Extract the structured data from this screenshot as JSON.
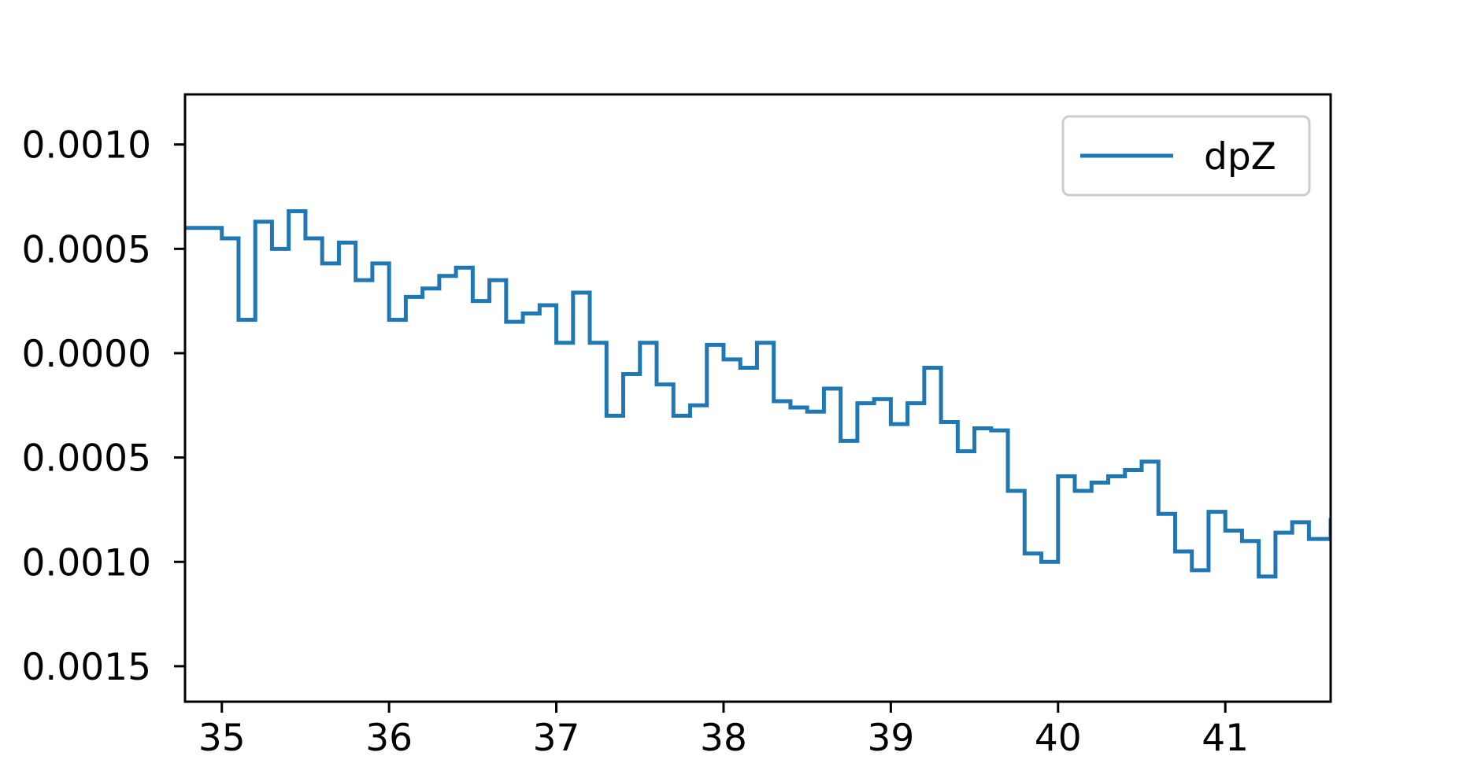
{
  "chart_data": {
    "type": "line",
    "drawstyle": "steps",
    "title": "",
    "xlabel": "",
    "ylabel": "",
    "xlim": [
      34.78,
      41.63
    ],
    "ylim": [
      -0.00167,
      0.00124
    ],
    "x_ticks": [
      35,
      36,
      37,
      38,
      39,
      40,
      41
    ],
    "x_tick_labels": [
      "35",
      "36",
      "37",
      "38",
      "39",
      "40",
      "41"
    ],
    "y_ticks": [
      0.001,
      0.0005,
      0.0,
      -0.0005,
      -0.001,
      -0.0015
    ],
    "y_tick_labels": [
      "0.0010",
      "0.0005",
      "0.0000",
      "0.0005",
      "0.0010",
      "0.0015"
    ],
    "grid": false,
    "legend": {
      "position": "top-right",
      "entries": [
        "dpZ"
      ]
    },
    "series": [
      {
        "name": "dpZ",
        "color": "#1f77b4",
        "x": [
          34.78,
          34.9,
          35.0,
          35.1,
          35.2,
          35.3,
          35.4,
          35.5,
          35.6,
          35.7,
          35.8,
          35.9,
          36.0,
          36.1,
          36.2,
          36.3,
          36.4,
          36.5,
          36.6,
          36.7,
          36.8,
          36.9,
          37.0,
          37.1,
          37.2,
          37.3,
          37.4,
          37.5,
          37.6,
          37.7,
          37.8,
          37.9,
          38.0,
          38.1,
          38.2,
          38.3,
          38.4,
          38.5,
          38.6,
          38.7,
          38.8,
          38.9,
          39.0,
          39.1,
          39.2,
          39.3,
          39.4,
          39.5,
          39.6,
          39.7,
          39.8,
          39.9,
          40.0,
          40.1,
          40.2,
          40.3,
          40.4,
          40.5,
          40.6,
          40.7,
          40.8,
          40.9,
          41.0,
          41.1,
          41.2,
          41.3,
          41.4,
          41.5,
          41.63
        ],
        "y": [
          0.0006,
          0.0006,
          0.00055,
          0.00016,
          0.00063,
          0.0005,
          0.00068,
          0.00055,
          0.00043,
          0.00053,
          0.00035,
          0.00043,
          0.00016,
          0.00027,
          0.00031,
          0.00037,
          0.00041,
          0.00025,
          0.00035,
          0.00015,
          0.00019,
          0.00023,
          5e-05,
          0.00029,
          5e-05,
          -0.0003,
          -0.0001,
          5e-05,
          -0.00015,
          -0.0003,
          -0.00025,
          4e-05,
          -3e-05,
          -7e-05,
          5e-05,
          -0.00023,
          -0.00026,
          -0.00028,
          -0.00017,
          -0.00042,
          -0.00024,
          -0.00022,
          -0.00034,
          -0.00024,
          -7e-05,
          -0.00033,
          -0.00047,
          -0.00036,
          -0.00037,
          -0.00066,
          -0.00096,
          -0.001,
          -0.00059,
          -0.00066,
          -0.00062,
          -0.00059,
          -0.00056,
          -0.00052,
          -0.00077,
          -0.00095,
          -0.00104,
          -0.00076,
          -0.00085,
          -0.0009,
          -0.00107,
          -0.00086,
          -0.00081,
          -0.00089,
          -0.00079
        ]
      }
    ]
  }
}
